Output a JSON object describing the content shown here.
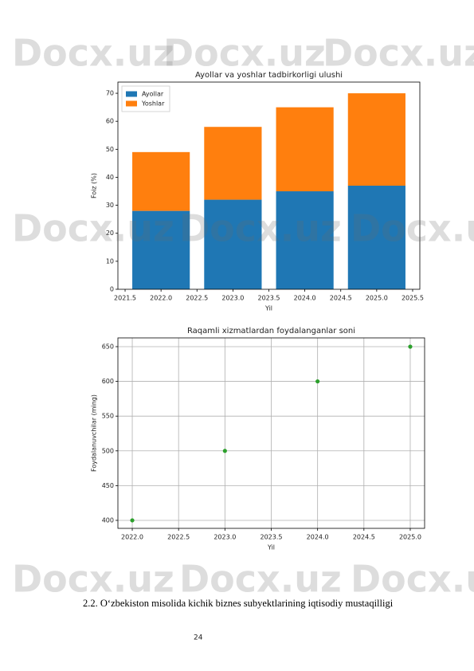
{
  "watermark": "Docx.uz",
  "chart_data": [
    {
      "type": "bar",
      "title": "Ayollar va yoshlar tadbirkorligi ulushi",
      "xlabel": "Yil",
      "ylabel": "Foiz (%)",
      "x": [
        2022,
        2023,
        2024,
        2025
      ],
      "series": [
        {
          "name": "Ayollar",
          "color": "#1f77b4",
          "values": [
            28,
            32,
            35,
            37
          ]
        },
        {
          "name": "Yoshlar",
          "color": "#ff7f0e",
          "values": [
            21,
            26,
            30,
            33
          ]
        }
      ],
      "xlim": [
        2021.4,
        2025.6
      ],
      "xticks": [
        2021.5,
        {
          "value": 2022,
          "label": "2022.0"
        },
        2022.5,
        {
          "value": 2023,
          "label": "2023.0"
        },
        2023.5,
        {
          "value": 2024,
          "label": "2024.0"
        },
        2024.5,
        {
          "value": 2025,
          "label": "2025.0"
        },
        2025.5
      ],
      "ylim": [
        0,
        74
      ],
      "yticks": [
        0,
        10,
        20,
        30,
        40,
        50,
        60,
        70
      ],
      "grid": false,
      "legend": "upper left"
    },
    {
      "type": "scatter",
      "title": "Raqamli xizmatlardan foydalanganlar soni",
      "xlabel": "Yil",
      "ylabel": "Foydalanuvchilar (ming)",
      "x": [
        2022,
        2023,
        2024,
        2025
      ],
      "series": [
        {
          "color": "#2ca02c",
          "values": [
            400,
            500,
            600,
            650
          ]
        }
      ],
      "xlim": [
        2021.845,
        2025.155
      ],
      "xticks": [
        {
          "value": 2022,
          "label": "2022.0"
        },
        2022.5,
        {
          "value": 2023,
          "label": "2023.0"
        },
        2023.5,
        {
          "value": 2024,
          "label": "2024.0"
        },
        2024.5,
        {
          "value": 2025,
          "label": "2025.0"
        }
      ],
      "ylim": [
        388.5,
        662.6
      ],
      "yticks": [
        400,
        450,
        500,
        550,
        600,
        650
      ],
      "grid": true
    }
  ],
  "heading": "2.2. O‘zbekiston misolida kichik biznes subyektlarining iqtisodiy mustaqilligi",
  "page_number": "24"
}
